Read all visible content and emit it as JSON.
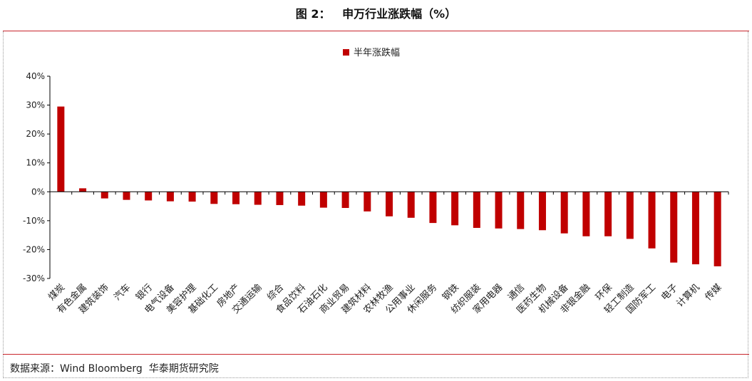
{
  "header": {
    "title": "图 2：   申万行业涨跌幅（%）"
  },
  "footer": {
    "source": "数据来源：Wind Bloomberg  华泰期货研究院"
  },
  "chart_data": {
    "type": "bar",
    "title": "图 2：   申万行业涨跌幅（%）",
    "xlabel": "",
    "ylabel": "",
    "ylim": [
      -30,
      40
    ],
    "yticks": [
      40,
      30,
      20,
      10,
      0,
      -10,
      -20,
      -30
    ],
    "ytick_labels": [
      "40%",
      "30%",
      "20%",
      "10%",
      "0%",
      "-10%",
      "-20%",
      "-30%"
    ],
    "grid": false,
    "legend_position": "top-center",
    "colors": {
      "bar": "#c00000",
      "rule": "#c9252c",
      "axis": "#000000"
    },
    "categories": [
      "煤炭",
      "有色金属",
      "建筑装饰",
      "汽车",
      "银行",
      "电气设备",
      "美容护理",
      "基础化工",
      "房地产",
      "交通运输",
      "综合",
      "食品饮料",
      "石油石化",
      "商业贸易",
      "建筑材料",
      "农林牧渔",
      "公用事业",
      "休闲服务",
      "钢铁",
      "纺织服装",
      "家用电器",
      "通信",
      "医药生物",
      "机械设备",
      "非银金融",
      "环保",
      "轻工制造",
      "国防军工",
      "电子",
      "计算机",
      "传媒"
    ],
    "series": [
      {
        "name": "半年涨跌幅",
        "values": [
          29.5,
          1.2,
          -2.3,
          -2.8,
          -3.0,
          -3.3,
          -3.4,
          -4.2,
          -4.3,
          -4.5,
          -4.6,
          -4.8,
          -5.5,
          -5.6,
          -6.8,
          -8.5,
          -9.0,
          -10.8,
          -11.6,
          -12.5,
          -12.7,
          -12.9,
          -13.3,
          -14.4,
          -15.4,
          -15.4,
          -16.3,
          -19.6,
          -24.5,
          -25.1,
          -25.8
        ]
      }
    ]
  }
}
